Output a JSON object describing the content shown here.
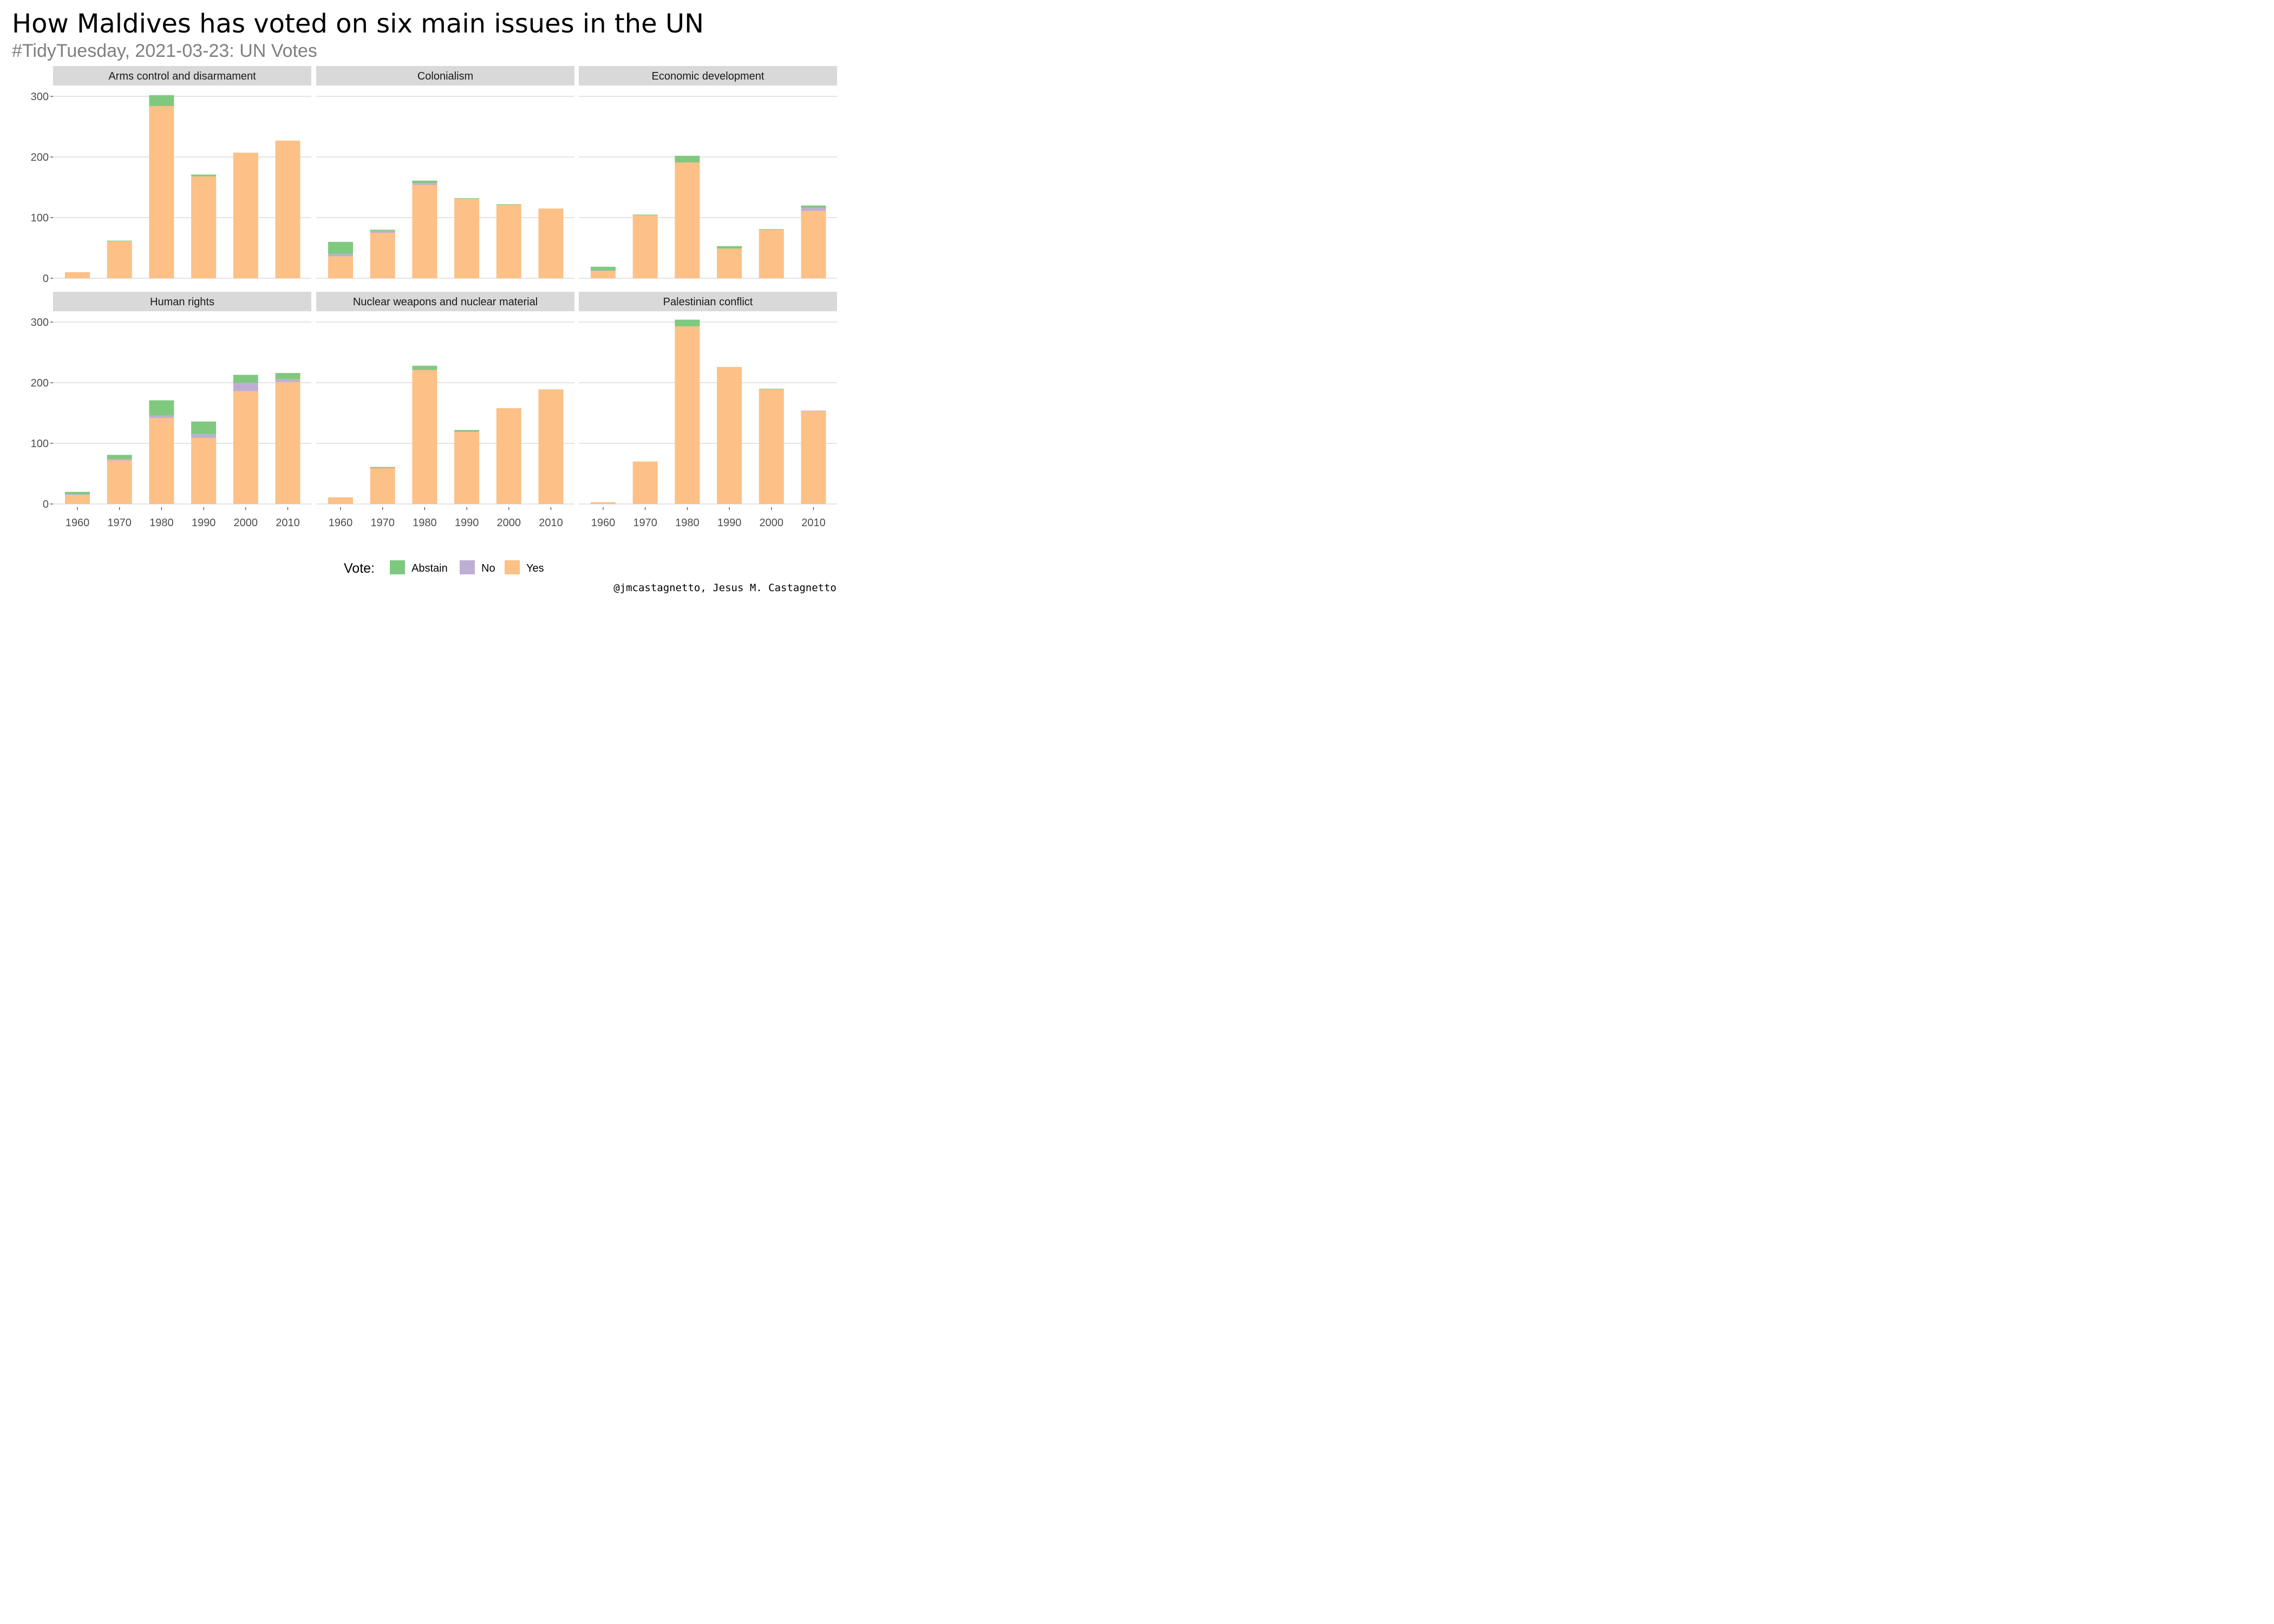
{
  "title": "How Maldives has voted on six main issues in the UN",
  "subtitle": "#TidyTuesday, 2021-03-23: UN Votes",
  "caption": "@jmcastagnetto, Jesus M. Castagnetto",
  "legend": {
    "title": "Vote:",
    "position": "bottom",
    "items": [
      {
        "label": "Abstain",
        "color": "#7fc97f"
      },
      {
        "label": "No",
        "color": "#beaed4"
      },
      {
        "label": "Yes",
        "color": "#fdc086"
      }
    ]
  },
  "chart_data": {
    "type": "bar",
    "stacked": true,
    "grid": true,
    "ylim": [
      0,
      300
    ],
    "yticks": [
      0,
      100,
      200,
      300
    ],
    "categories": [
      "1960",
      "1970",
      "1980",
      "1990",
      "2000",
      "2010"
    ],
    "series_names": [
      "Abstain",
      "No",
      "Yes"
    ],
    "series_colors": {
      "Abstain": "#7fc97f",
      "No": "#beaed4",
      "Yes": "#fdc086"
    },
    "facets": [
      {
        "name": "Arms control and disarmament",
        "series": [
          {
            "name": "Abstain",
            "values": [
              0,
              1,
              18,
              3,
              0,
              0
            ]
          },
          {
            "name": "No",
            "values": [
              0,
              0,
              0,
              0,
              0,
              0
            ]
          },
          {
            "name": "Yes",
            "values": [
              10,
              61,
              284,
              168,
              207,
              227
            ]
          }
        ]
      },
      {
        "name": "Colonialism",
        "series": [
          {
            "name": "Abstain",
            "values": [
              20,
              2,
              4,
              1,
              1,
              0
            ]
          },
          {
            "name": "No",
            "values": [
              4,
              3,
              3,
              0,
              0,
              0
            ]
          },
          {
            "name": "Yes",
            "values": [
              36,
              75,
              154,
              131,
              121,
              115
            ]
          }
        ]
      },
      {
        "name": "Economic development",
        "series": [
          {
            "name": "Abstain",
            "values": [
              6,
              1,
              11,
              4,
              1,
              4
            ]
          },
          {
            "name": "No",
            "values": [
              1,
              0,
              0,
              0,
              0,
              5
            ]
          },
          {
            "name": "Yes",
            "values": [
              12,
              104,
              191,
              49,
              80,
              111
            ]
          }
        ]
      },
      {
        "name": "Human rights",
        "series": [
          {
            "name": "Abstain",
            "values": [
              4,
              7,
              25,
              21,
              13,
              10
            ]
          },
          {
            "name": "No",
            "values": [
              1,
              2,
              4,
              6,
              14,
              5
            ]
          },
          {
            "name": "Yes",
            "values": [
              15,
              72,
              142,
              109,
              186,
              201
            ]
          }
        ]
      },
      {
        "name": "Nuclear weapons and nuclear material",
        "series": [
          {
            "name": "Abstain",
            "values": [
              0,
              2,
              7,
              3,
              0,
              0
            ]
          },
          {
            "name": "No",
            "values": [
              0,
              0,
              0,
              0,
              0,
              0
            ]
          },
          {
            "name": "Yes",
            "values": [
              11,
              59,
              221,
              119,
              158,
              189
            ]
          }
        ]
      },
      {
        "name": "Palestinian conflict",
        "series": [
          {
            "name": "Abstain",
            "values": [
              0,
              0,
              11,
              0,
              1,
              0
            ]
          },
          {
            "name": "No",
            "values": [
              0,
              0,
              0,
              0,
              0,
              1
            ]
          },
          {
            "name": "Yes",
            "values": [
              3,
              70,
              293,
              226,
              189,
              153
            ]
          }
        ]
      }
    ]
  }
}
